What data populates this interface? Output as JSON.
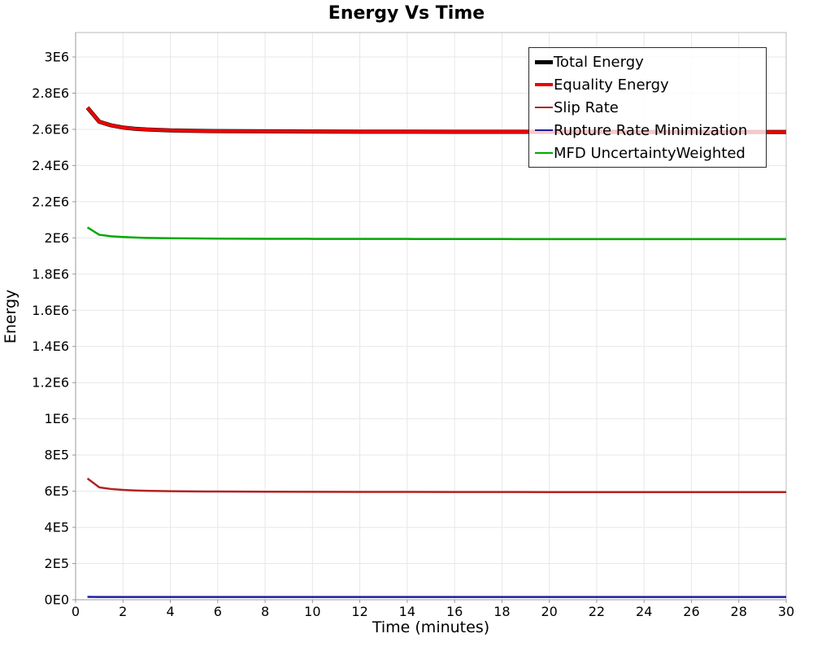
{
  "chart_data": {
    "type": "line",
    "title": "Energy Vs Time",
    "xlabel": "Time (minutes)",
    "ylabel": "Energy",
    "xlim": [
      0,
      30
    ],
    "ylim": [
      0,
      3135000
    ],
    "grid": true,
    "legend_position": "inside-top-right",
    "x_ticks": {
      "values": [
        0,
        2,
        4,
        6,
        8,
        10,
        12,
        14,
        16,
        18,
        20,
        22,
        24,
        26,
        28,
        30
      ],
      "labels": [
        "0",
        "2",
        "4",
        "6",
        "8",
        "10",
        "12",
        "14",
        "16",
        "18",
        "20",
        "22",
        "24",
        "26",
        "28",
        "30"
      ]
    },
    "y_ticks": {
      "values": [
        0,
        200000,
        400000,
        600000,
        800000,
        1000000,
        1200000,
        1400000,
        1600000,
        1800000,
        2000000,
        2200000,
        2400000,
        2600000,
        2800000,
        3000000
      ],
      "labels": [
        "0E0",
        "2E5",
        "4E5",
        "6E5",
        "8E5",
        "1E6",
        "1.2E6",
        "1.4E6",
        "1.6E6",
        "1.8E6",
        "2E6",
        "2.2E6",
        "2.4E6",
        "2.6E6",
        "2.8E6",
        "3E6"
      ]
    },
    "x": [
      0.5,
      1,
      1.5,
      2,
      2.5,
      3,
      4,
      5,
      6,
      8,
      10,
      12,
      14,
      16,
      18,
      20,
      22,
      24,
      26,
      28,
      30
    ],
    "series": [
      {
        "name": "Total Energy",
        "color": "#000000",
        "line_width": 5,
        "values": [
          2720000,
          2642000,
          2622000,
          2610000,
          2603000,
          2599000,
          2594000,
          2592000,
          2590000,
          2589000,
          2588000,
          2587000,
          2587000,
          2586000,
          2586000,
          2586000,
          2586000,
          2585000,
          2585000,
          2585000,
          2585000
        ]
      },
      {
        "name": "Equality Energy",
        "color": "#ee0000",
        "line_width": 4,
        "values": [
          2720000,
          2642000,
          2622000,
          2610000,
          2603000,
          2599000,
          2594000,
          2592000,
          2590000,
          2589000,
          2588000,
          2587000,
          2587000,
          2586000,
          2586000,
          2586000,
          2586000,
          2585000,
          2585000,
          2585000,
          2585000
        ]
      },
      {
        "name": "Slip Rate",
        "color": "#b22222",
        "line_width": 2.5,
        "values": [
          670000,
          621000,
          612000,
          607000,
          604000,
          602000,
          600000,
          598500,
          598000,
          597000,
          596500,
          596000,
          596000,
          595500,
          595500,
          595000,
          595000,
          595000,
          595000,
          595000,
          595000
        ]
      },
      {
        "name": "Rupture Rate Minimization",
        "color": "#1e1ea0",
        "line_width": 2.5,
        "values": [
          16000,
          15300,
          15100,
          15000,
          15000,
          15000,
          15000,
          15000,
          15000,
          15000,
          15000,
          15000,
          15000,
          15000,
          15000,
          15000,
          15000,
          15000,
          15000,
          15000,
          15000
        ]
      },
      {
        "name": "MFD UncertaintyWeighted",
        "color": "#00aa00",
        "line_width": 2.5,
        "values": [
          2058000,
          2017000,
          2009000,
          2005000,
          2002000,
          2000000,
          1998000,
          1997000,
          1996000,
          1995000,
          1994500,
          1994000,
          1994000,
          1993500,
          1993500,
          1993000,
          1993000,
          1993000,
          1993000,
          1993000,
          1993000
        ]
      }
    ],
    "style": {
      "grid_color": "#e7e7e7",
      "axis_line_color": "#999999",
      "plot_border_color": "#b8b8b8",
      "tick_label_color": "#000000"
    }
  }
}
